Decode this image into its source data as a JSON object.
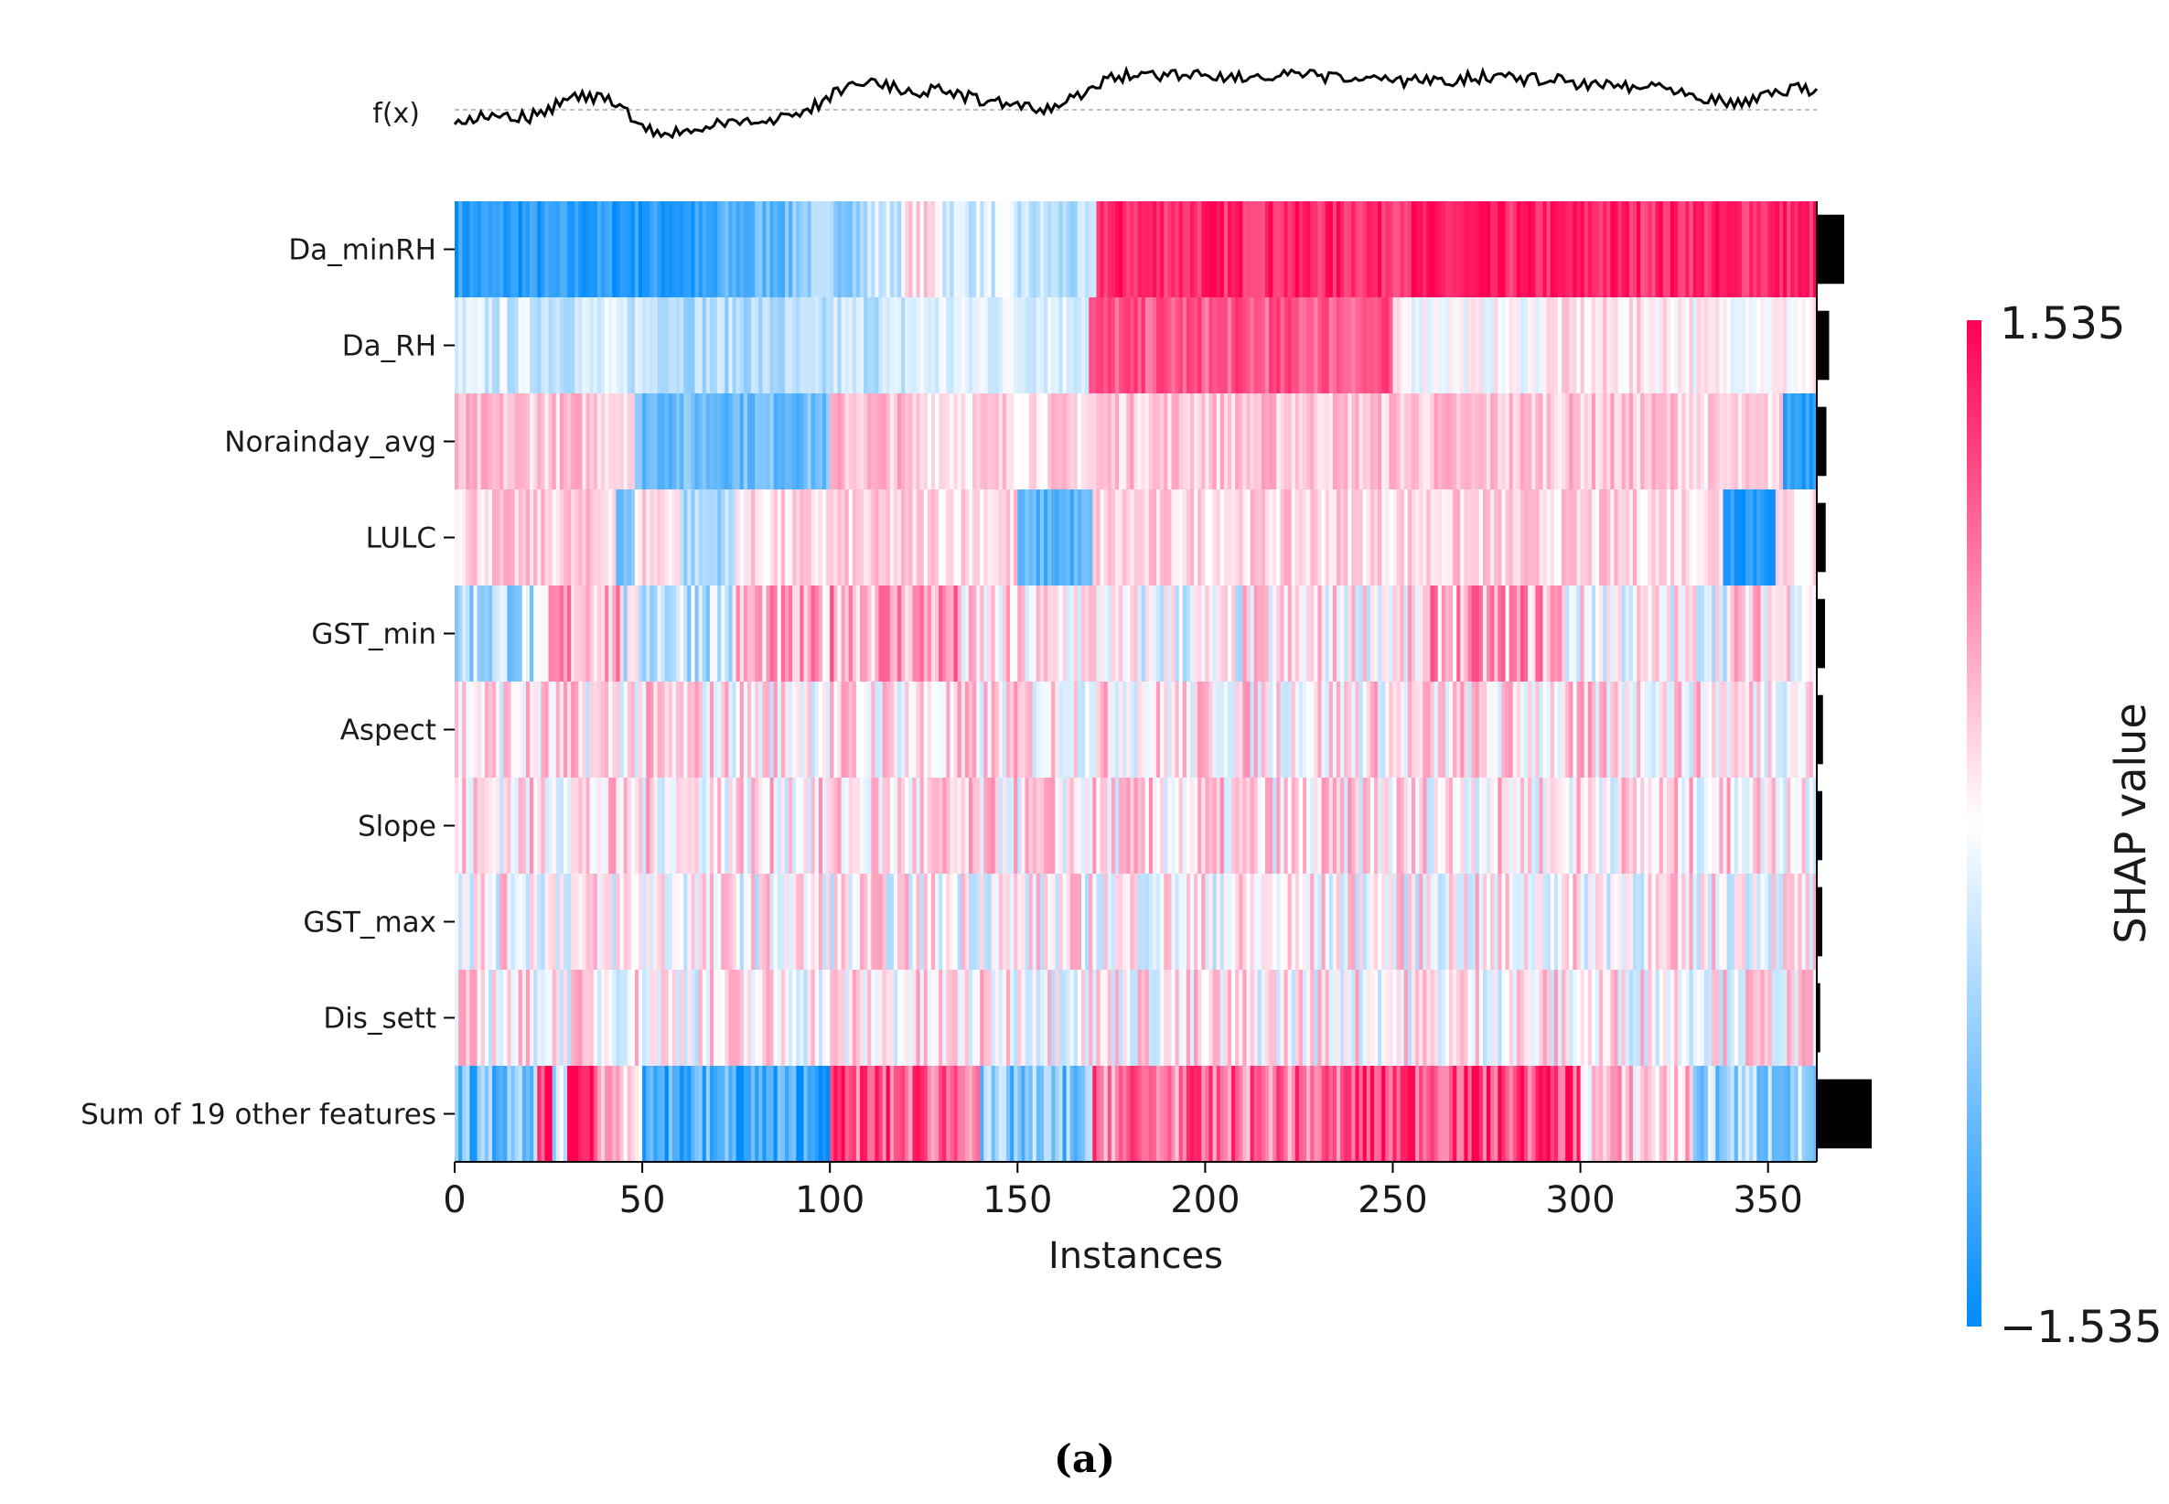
{
  "chart_data": {
    "type": "heatmap",
    "title": "",
    "xlabel": "Instances",
    "ylabel": "",
    "xlim": [
      0,
      363
    ],
    "x_ticks": [
      "0",
      "50",
      "100",
      "150",
      "200",
      "250",
      "300",
      "350"
    ],
    "x_tick_values": [
      0,
      50,
      100,
      150,
      200,
      250,
      300,
      350
    ],
    "features": [
      "Da_minRH",
      "Da_RH",
      "Norainday_avg",
      "LULC",
      "GST_min",
      "Aspect",
      "Slope",
      "GST_max",
      "Dis_sett",
      "Sum of 19 other features"
    ],
    "mean_abs_shap_bars": [
      0.4,
      0.18,
      0.14,
      0.13,
      0.12,
      0.09,
      0.08,
      0.08,
      0.05,
      0.8
    ],
    "segments": [
      [
        [
          0,
          70,
          -1.3
        ],
        [
          70,
          80,
          -1.05
        ],
        [
          80,
          90,
          -0.9
        ],
        [
          90,
          110,
          -0.6
        ],
        [
          110,
          120,
          -0.3
        ],
        [
          120,
          130,
          0.2
        ],
        [
          130,
          150,
          -0.25
        ],
        [
          150,
          160,
          -0.4
        ],
        [
          160,
          171,
          -0.5
        ],
        [
          171,
          363,
          1.3
        ]
      ],
      [
        [
          0,
          60,
          -0.3
        ],
        [
          60,
          80,
          -0.45
        ],
        [
          80,
          100,
          -0.5
        ],
        [
          100,
          120,
          -0.35
        ],
        [
          120,
          140,
          -0.2
        ],
        [
          140,
          169,
          -0.15
        ],
        [
          169,
          250,
          1.0
        ],
        [
          250,
          290,
          0.0
        ],
        [
          290,
          330,
          0.15
        ],
        [
          330,
          363,
          0.05
        ]
      ],
      [
        [
          0,
          48,
          0.35
        ],
        [
          48,
          100,
          -0.85
        ],
        [
          100,
          120,
          0.4
        ],
        [
          120,
          140,
          0.25
        ],
        [
          140,
          171,
          0.25
        ],
        [
          171,
          330,
          0.35
        ],
        [
          330,
          354,
          0.2
        ],
        [
          354,
          363,
          -1.2
        ]
      ],
      [
        [
          0,
          43,
          0.3
        ],
        [
          43,
          48,
          -0.9
        ],
        [
          48,
          60,
          0.25
        ],
        [
          60,
          75,
          -0.5
        ],
        [
          75,
          100,
          0.2
        ],
        [
          100,
          150,
          0.25
        ],
        [
          150,
          170,
          -1.0
        ],
        [
          170,
          338,
          0.25
        ],
        [
          338,
          352,
          -1.25
        ],
        [
          352,
          363,
          0.15
        ]
      ],
      [
        [
          0,
          25,
          -0.45
        ],
        [
          25,
          45,
          0.55
        ],
        [
          45,
          75,
          -0.3
        ],
        [
          75,
          100,
          0.4
        ],
        [
          100,
          135,
          0.6
        ],
        [
          135,
          175,
          0.1
        ],
        [
          175,
          210,
          -0.1
        ],
        [
          210,
          260,
          0.1
        ],
        [
          260,
          295,
          0.55
        ],
        [
          295,
          340,
          0.0
        ],
        [
          340,
          363,
          0.2
        ]
      ],
      [
        [
          0,
          363,
          0.15
        ]
      ],
      [
        [
          0,
          363,
          0.15
        ]
      ],
      [
        [
          0,
          363,
          0.05
        ]
      ],
      [
        [
          0,
          363,
          0.1
        ]
      ],
      [
        [
          0,
          22,
          -0.9
        ],
        [
          22,
          26,
          1.45
        ],
        [
          26,
          30,
          -0.5
        ],
        [
          30,
          38,
          1.45
        ],
        [
          38,
          50,
          0.5
        ],
        [
          50,
          75,
          -1.1
        ],
        [
          75,
          100,
          -1.2
        ],
        [
          100,
          140,
          1.0
        ],
        [
          140,
          170,
          -0.8
        ],
        [
          170,
          238,
          0.85
        ],
        [
          238,
          300,
          1.15
        ],
        [
          300,
          330,
          0.3
        ],
        [
          330,
          363,
          -0.6
        ]
      ]
    ],
    "fx_points": [
      [
        0,
        128
      ],
      [
        10,
        122
      ],
      [
        20,
        125
      ],
      [
        30,
        113
      ],
      [
        35,
        110
      ],
      [
        40,
        112
      ],
      [
        45,
        120
      ],
      [
        50,
        132
      ],
      [
        55,
        138
      ],
      [
        60,
        136
      ],
      [
        65,
        133
      ],
      [
        70,
        131
      ],
      [
        75,
        130
      ],
      [
        80,
        128
      ],
      [
        85,
        126
      ],
      [
        90,
        124
      ],
      [
        95,
        119
      ],
      [
        100,
        110
      ],
      [
        105,
        101
      ],
      [
        110,
        101
      ],
      [
        115,
        102
      ],
      [
        120,
        106
      ],
      [
        125,
        106
      ],
      [
        130,
        105
      ],
      [
        135,
        110
      ],
      [
        140,
        112
      ],
      [
        145,
        114
      ],
      [
        150,
        118
      ],
      [
        155,
        120
      ],
      [
        160,
        118
      ],
      [
        165,
        112
      ],
      [
        170,
        102
      ],
      [
        175,
        97
      ],
      [
        180,
        95
      ],
      [
        185,
        95
      ],
      [
        190,
        94
      ],
      [
        195,
        94
      ],
      [
        200,
        94
      ],
      [
        205,
        95
      ],
      [
        210,
        96
      ],
      [
        215,
        97
      ],
      [
        220,
        96
      ],
      [
        225,
        95
      ],
      [
        230,
        96
      ],
      [
        235,
        97
      ],
      [
        240,
        98
      ],
      [
        245,
        97
      ],
      [
        250,
        100
      ],
      [
        255,
        100
      ],
      [
        260,
        97
      ],
      [
        265,
        99
      ],
      [
        270,
        97
      ],
      [
        275,
        96
      ],
      [
        280,
        95
      ],
      [
        285,
        98
      ],
      [
        290,
        97
      ],
      [
        295,
        99
      ],
      [
        300,
        101
      ],
      [
        305,
        100
      ],
      [
        310,
        102
      ],
      [
        315,
        103
      ],
      [
        320,
        102
      ],
      [
        325,
        104
      ],
      [
        330,
        108
      ],
      [
        335,
        112
      ],
      [
        340,
        114
      ],
      [
        345,
        113
      ],
      [
        350,
        108
      ],
      [
        355,
        106
      ],
      [
        360,
        104
      ],
      [
        363,
        107
      ]
    ],
    "fx_label": "f(x)",
    "colorbar": {
      "min": -1.535,
      "max": 1.535,
      "min_label": "−1.535",
      "max_label": "1.535",
      "label": "SHAP value"
    },
    "colors": {
      "negative": "#008bfb",
      "positive": "#ff0051",
      "neutral": "#ffffff"
    }
  },
  "caption": "(a)"
}
